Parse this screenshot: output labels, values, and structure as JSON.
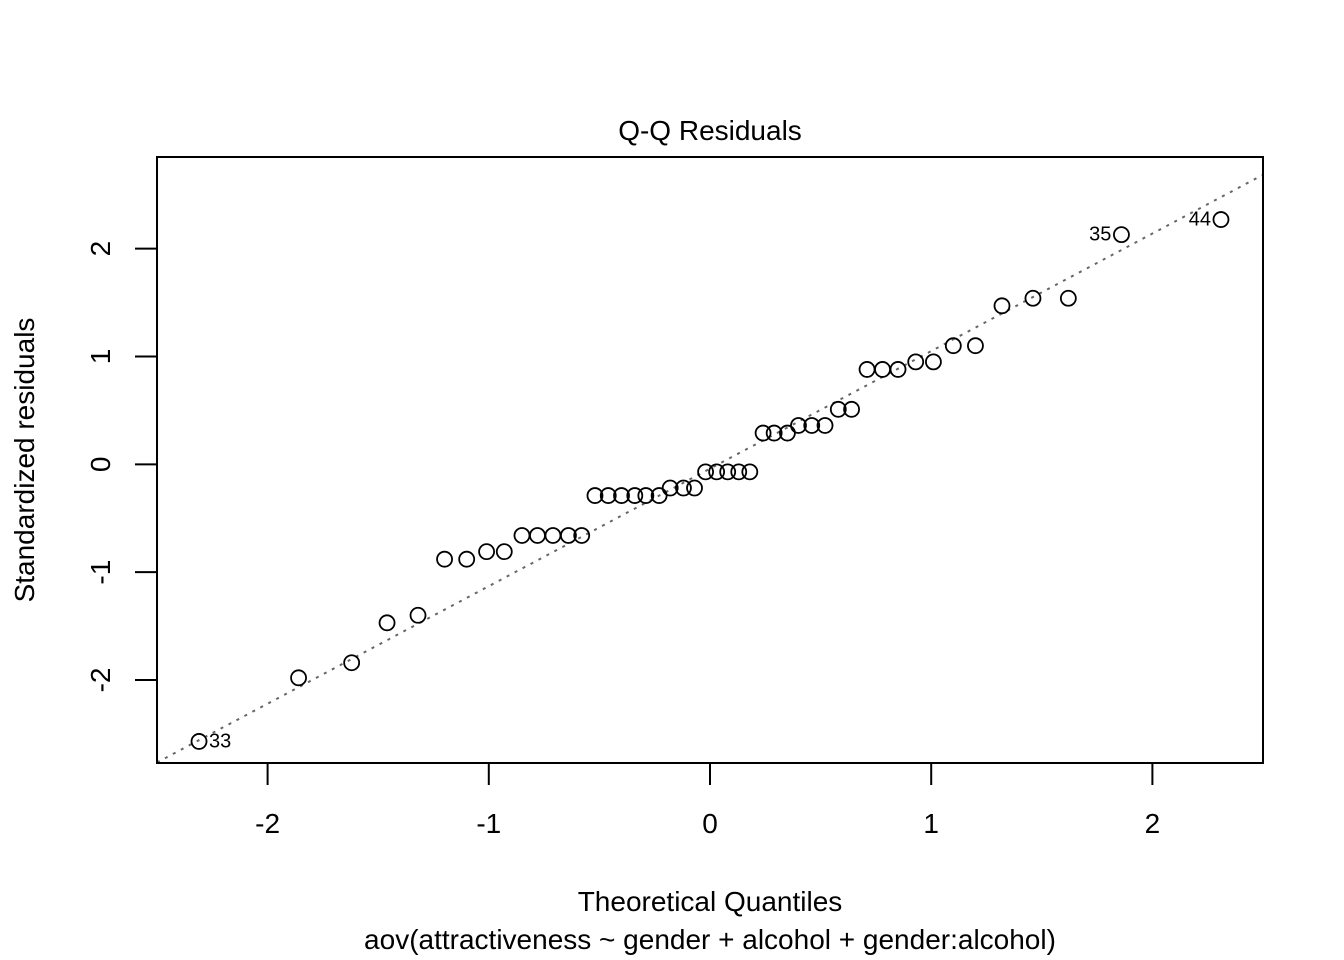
{
  "chart_data": {
    "type": "scatter",
    "title": "Q-Q Residuals",
    "xlabel": "Theoretical Quantiles",
    "subtitle": "aov(attractiveness ~ gender + alcohol + gender:alcohol)",
    "ylabel": "Standardized residuals",
    "xlim": [
      -2.5,
      2.5
    ],
    "ylim": [
      -2.77,
      2.85
    ],
    "xticks": [
      -2,
      -1,
      0,
      1,
      2
    ],
    "xtick_labels": [
      "-2",
      "-1",
      "0",
      "1",
      "2"
    ],
    "yticks": [
      -2,
      -1,
      0,
      1,
      2
    ],
    "ytick_labels": [
      "-2",
      "-1",
      "0",
      "1",
      "2"
    ],
    "grid": false,
    "reference_line": {
      "intercept": -0.04,
      "slope": 1.09,
      "style": "dotted",
      "color": "#666666"
    },
    "point_style": "open-circle",
    "points": [
      {
        "x": -2.31,
        "y": -2.57,
        "label": "33"
      },
      {
        "x": -1.86,
        "y": -1.98
      },
      {
        "x": -1.62,
        "y": -1.84
      },
      {
        "x": -1.46,
        "y": -1.47
      },
      {
        "x": -1.32,
        "y": -1.4
      },
      {
        "x": -1.2,
        "y": -0.88
      },
      {
        "x": -1.1,
        "y": -0.88
      },
      {
        "x": -1.01,
        "y": -0.81
      },
      {
        "x": -0.93,
        "y": -0.81
      },
      {
        "x": -0.85,
        "y": -0.66
      },
      {
        "x": -0.78,
        "y": -0.66
      },
      {
        "x": -0.71,
        "y": -0.66
      },
      {
        "x": -0.64,
        "y": -0.66
      },
      {
        "x": -0.58,
        "y": -0.66
      },
      {
        "x": -0.52,
        "y": -0.29
      },
      {
        "x": -0.46,
        "y": -0.29
      },
      {
        "x": -0.4,
        "y": -0.29
      },
      {
        "x": -0.34,
        "y": -0.29
      },
      {
        "x": -0.29,
        "y": -0.29
      },
      {
        "x": -0.23,
        "y": -0.29
      },
      {
        "x": -0.18,
        "y": -0.22
      },
      {
        "x": -0.12,
        "y": -0.22
      },
      {
        "x": -0.07,
        "y": -0.22
      },
      {
        "x": -0.02,
        "y": -0.07
      },
      {
        "x": 0.03,
        "y": -0.07
      },
      {
        "x": 0.08,
        "y": -0.07
      },
      {
        "x": 0.13,
        "y": -0.07
      },
      {
        "x": 0.18,
        "y": -0.07
      },
      {
        "x": 0.24,
        "y": 0.29
      },
      {
        "x": 0.29,
        "y": 0.29
      },
      {
        "x": 0.35,
        "y": 0.29
      },
      {
        "x": 0.4,
        "y": 0.36
      },
      {
        "x": 0.46,
        "y": 0.36
      },
      {
        "x": 0.52,
        "y": 0.36
      },
      {
        "x": 0.58,
        "y": 0.51
      },
      {
        "x": 0.64,
        "y": 0.51
      },
      {
        "x": 0.71,
        "y": 0.88
      },
      {
        "x": 0.78,
        "y": 0.88
      },
      {
        "x": 0.85,
        "y": 0.88
      },
      {
        "x": 0.93,
        "y": 0.95
      },
      {
        "x": 1.01,
        "y": 0.95
      },
      {
        "x": 1.1,
        "y": 1.1
      },
      {
        "x": 1.2,
        "y": 1.1
      },
      {
        "x": 1.32,
        "y": 1.47
      },
      {
        "x": 1.46,
        "y": 1.54
      },
      {
        "x": 1.62,
        "y": 1.54
      },
      {
        "x": 1.86,
        "y": 2.13,
        "label": "35"
      },
      {
        "x": 2.31,
        "y": 2.27,
        "label": "44"
      }
    ]
  }
}
